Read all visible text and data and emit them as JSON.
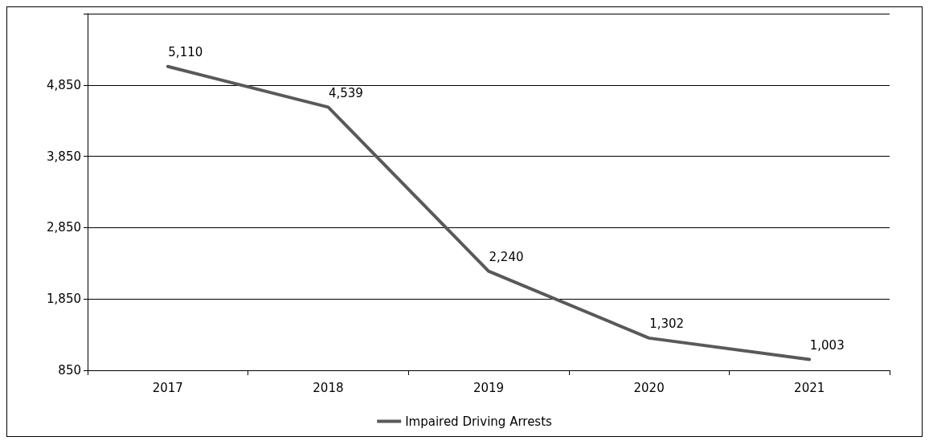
{
  "chart_data": {
    "type": "line",
    "categories": [
      "2017",
      "2018",
      "2019",
      "2020",
      "2021"
    ],
    "series": [
      {
        "name": "Impaired Driving Arrests",
        "color": "#595959",
        "values": [
          5110,
          4539,
          2240,
          1302,
          1003
        ],
        "value_labels": [
          "5,110",
          "4,539",
          "2,240",
          "1,302",
          "1,003"
        ]
      }
    ],
    "ylim": [
      850,
      5850
    ],
    "yticks": [
      850,
      {
        "value": 1850,
        "label": "1,850"
      },
      {
        "value": 2850,
        "label": "2,850"
      },
      {
        "value": 3850,
        "label": "3,850"
      },
      {
        "value": 4850,
        "label": "4,850"
      },
      {
        "value": 5850,
        "label": null
      }
    ],
    "grid": "y",
    "legend": "bottom",
    "marker": "none",
    "line_style": "solid"
  }
}
